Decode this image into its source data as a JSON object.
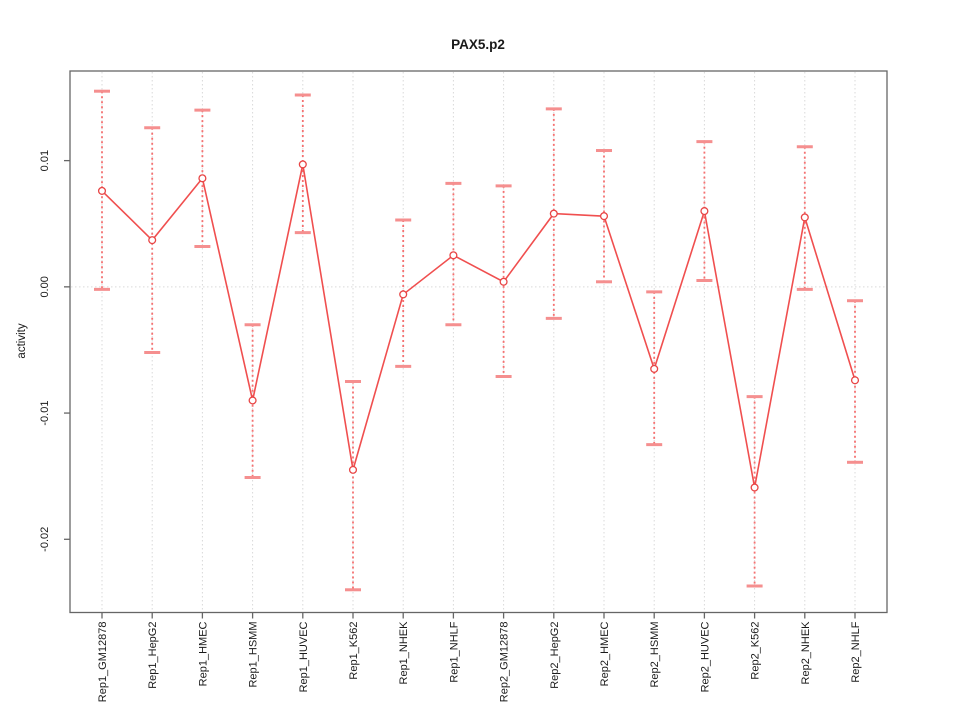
{
  "chart_data": {
    "type": "line",
    "title": "PAX5.p2",
    "xlabel": "",
    "ylabel": "activity",
    "categories": [
      "Rep1_GM12878",
      "Rep1_HepG2",
      "Rep1_HMEC",
      "Rep1_HSMM",
      "Rep1_HUVEC",
      "Rep1_K562",
      "Rep1_NHEK",
      "Rep1_NHLF",
      "Rep2_GM12878",
      "Rep2_HepG2",
      "Rep2_HMEC",
      "Rep2_HSMM",
      "Rep2_HUVEC",
      "Rep2_K562",
      "Rep2_NHEK",
      "Rep2_NHLF"
    ],
    "series": [
      {
        "name": "activity",
        "marker": "open-circle",
        "values": [
          0.0076,
          0.0037,
          0.0086,
          -0.009,
          0.0097,
          -0.0145,
          -0.0006,
          0.0025,
          0.0004,
          0.0058,
          0.0056,
          -0.0065,
          0.006,
          -0.0159,
          0.0055,
          -0.0074
        ],
        "error_high": [
          0.0155,
          0.0126,
          0.014,
          -0.003,
          0.0152,
          -0.0075,
          0.0053,
          0.0082,
          0.008,
          0.0141,
          0.0108,
          -0.0004,
          0.0115,
          -0.0087,
          0.0111,
          -0.0011
        ],
        "error_low": [
          -0.0002,
          -0.0052,
          0.0032,
          -0.0151,
          0.0043,
          -0.024,
          -0.0063,
          -0.003,
          -0.0071,
          -0.0025,
          0.0004,
          -0.0125,
          0.0005,
          -0.0237,
          -0.0002,
          -0.0139
        ]
      }
    ],
    "ylim": [
      -0.0258,
      0.0171
    ],
    "yticks": [
      0.01,
      0.0,
      -0.01,
      -0.02
    ],
    "ytick_labels": [
      "0.01",
      "0.00",
      "-0.01",
      "-0.02"
    ],
    "grid": "dotted vertical line at every category; dotted horizontal line at y=0 only",
    "legend": "none",
    "colors": {
      "series_line": "#f04f4f",
      "marker_stroke": "#e84545",
      "error_bar_line": "#f57070",
      "error_bar_cap": "#f58f8f",
      "grid": "#d9d9d9",
      "axis": "#666666",
      "text": "#1a1a1a"
    }
  }
}
